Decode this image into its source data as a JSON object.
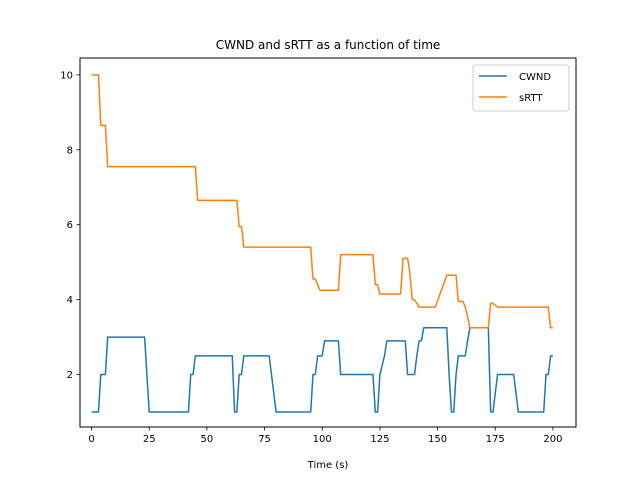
{
  "chart_data": {
    "type": "line",
    "title": "CWND and sRTT as a function of time",
    "xlabel": "Time (s)",
    "ylabel": "",
    "xlim": [
      -5,
      210
    ],
    "ylim": [
      0.6,
      10.45
    ],
    "xticks": [
      0,
      25,
      50,
      75,
      100,
      125,
      150,
      175,
      200
    ],
    "yticks": [
      2,
      4,
      6,
      8,
      10
    ],
    "grid": false,
    "legend_position": "top-right",
    "series": [
      {
        "name": "CWND",
        "color": "#1f77b4",
        "x": [
          0,
          3,
          4,
          6,
          7,
          23,
          25,
          42,
          43,
          44,
          45,
          46,
          60,
          61,
          62,
          63,
          64,
          65,
          66,
          77,
          78,
          80,
          95,
          96,
          97,
          98,
          99,
          100,
          101,
          102,
          103,
          107,
          108,
          122,
          123,
          124,
          125,
          127,
          128,
          133,
          134,
          136,
          137,
          140,
          141,
          142,
          143,
          144,
          145,
          146,
          147,
          154,
          155,
          156,
          157,
          158,
          159,
          162,
          163,
          164,
          165,
          171,
          172,
          173,
          174,
          176,
          177,
          183,
          185,
          196,
          197,
          198,
          199,
          200
        ],
        "y": [
          1.0,
          1.0,
          2.0,
          2.0,
          3.0,
          3.0,
          1.0,
          1.0,
          2.0,
          2.0,
          2.5,
          2.5,
          2.5,
          2.5,
          1.0,
          1.0,
          2.0,
          2.0,
          2.5,
          2.5,
          2.0,
          1.0,
          1.0,
          2.0,
          2.0,
          2.5,
          2.5,
          2.5,
          2.9,
          2.9,
          2.9,
          2.9,
          2.0,
          2.0,
          1.0,
          1.0,
          2.0,
          2.5,
          2.9,
          2.9,
          2.9,
          2.9,
          2.0,
          2.0,
          2.5,
          2.9,
          2.9,
          3.25,
          3.25,
          3.25,
          3.25,
          3.25,
          2.0,
          1.0,
          1.0,
          2.0,
          2.5,
          2.5,
          2.9,
          3.25,
          3.25,
          3.25,
          3.25,
          1.0,
          1.0,
          2.0,
          2.0,
          2.0,
          1.0,
          1.0,
          2.0,
          2.0,
          2.5,
          2.5
        ]
      },
      {
        "name": "sRTT",
        "color": "#ff7f0e",
        "x": [
          0,
          3,
          4,
          6,
          7,
          45,
          46,
          63,
          64,
          65,
          66,
          95,
          96,
          97,
          98,
          99,
          102,
          107,
          108,
          110,
          122,
          123,
          124,
          125,
          127,
          130,
          134,
          135,
          137,
          138,
          139,
          140,
          141,
          142,
          143,
          148,
          149,
          154,
          155,
          156,
          157,
          158,
          159,
          160,
          161,
          162,
          163,
          164,
          165,
          171,
          172,
          173,
          174,
          176,
          177,
          198,
          199,
          200
        ],
        "y": [
          10.0,
          10.0,
          8.65,
          8.65,
          7.55,
          7.55,
          6.65,
          6.65,
          5.95,
          5.95,
          5.4,
          5.4,
          4.55,
          4.55,
          4.4,
          4.25,
          4.25,
          4.25,
          5.2,
          5.2,
          5.2,
          4.4,
          4.4,
          4.15,
          4.15,
          4.15,
          4.15,
          5.1,
          5.1,
          4.7,
          4.0,
          4.0,
          3.9,
          3.8,
          3.8,
          3.8,
          3.8,
          4.65,
          4.65,
          4.65,
          4.65,
          4.65,
          3.95,
          3.95,
          3.95,
          3.8,
          3.55,
          3.25,
          3.25,
          3.25,
          3.25,
          3.9,
          3.9,
          3.8,
          3.8,
          3.8,
          3.25,
          3.25
        ]
      }
    ]
  }
}
